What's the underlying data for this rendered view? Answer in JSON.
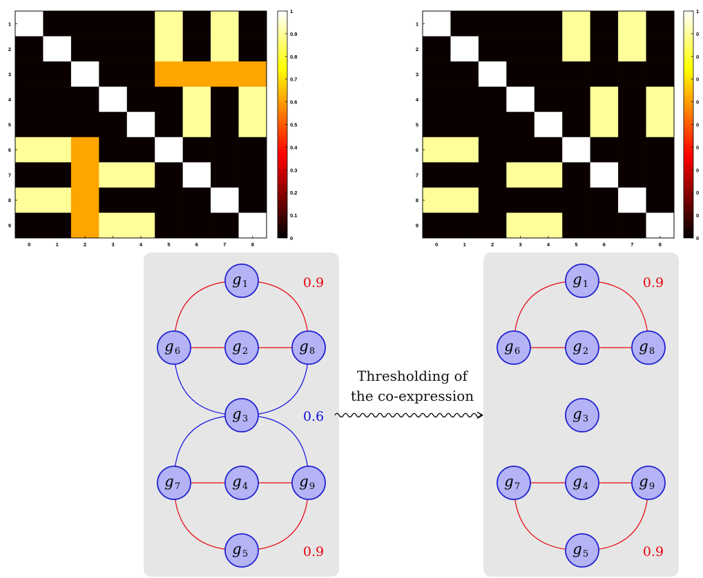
{
  "colors": {
    "red": "#e8000b",
    "blue": "#1010e0",
    "node_fill": "#b3b3f5",
    "node_stroke": "#2020d0",
    "panel": "#e6e6e6"
  },
  "heatmaps": [
    {
      "id": "original",
      "x_ticks": [
        "0",
        "1",
        "2",
        "3",
        "4",
        "5",
        "6",
        "7",
        "8"
      ],
      "y_ticks": [
        "1",
        "2",
        "3",
        "4",
        "5",
        "6",
        "7",
        "8",
        "9"
      ],
      "colorbar_ticks": [
        "0",
        "0.1",
        "0.2",
        "0.3",
        "0.4",
        "0.5",
        "0.6",
        "0.7",
        "0.8",
        "0.9",
        "1"
      ],
      "matrix": [
        [
          1,
          0,
          0,
          0,
          0,
          0.9,
          0,
          0.9,
          0
        ],
        [
          0,
          1,
          0,
          0,
          0,
          0.9,
          0,
          0.9,
          0
        ],
        [
          0,
          0,
          1,
          0,
          0,
          0.6,
          0.6,
          0.6,
          0.6
        ],
        [
          0,
          0,
          0,
          1,
          0,
          0,
          0.9,
          0,
          0.9
        ],
        [
          0,
          0,
          0,
          0,
          1,
          0,
          0.9,
          0,
          0.9
        ],
        [
          0.9,
          0.9,
          0.6,
          0,
          0,
          1,
          0,
          0,
          0
        ],
        [
          0,
          0,
          0.6,
          0.9,
          0.9,
          0,
          1,
          0,
          0
        ],
        [
          0.9,
          0.9,
          0.6,
          0,
          0,
          0,
          0,
          1,
          0
        ],
        [
          0,
          0,
          0.6,
          0.9,
          0.9,
          0,
          0,
          0,
          1
        ]
      ]
    },
    {
      "id": "thresholded",
      "x_ticks": [
        "0",
        "1",
        "2",
        "3",
        "4",
        "5",
        "6",
        "7",
        "8"
      ],
      "y_ticks": [
        "1",
        "2",
        "3",
        "4",
        "5",
        "6",
        "7",
        "8",
        "9"
      ],
      "colorbar_ticks": [
        "0",
        "0",
        "0",
        "0",
        "0",
        "0",
        "0",
        "0",
        "0",
        "0",
        "1"
      ],
      "matrix": [
        [
          1,
          0,
          0,
          0,
          0,
          0.9,
          0,
          0.9,
          0
        ],
        [
          0,
          1,
          0,
          0,
          0,
          0.9,
          0,
          0.9,
          0
        ],
        [
          0,
          0,
          1,
          0,
          0,
          0,
          0,
          0,
          0
        ],
        [
          0,
          0,
          0,
          1,
          0,
          0,
          0.9,
          0,
          0.9
        ],
        [
          0,
          0,
          0,
          0,
          1,
          0,
          0.9,
          0,
          0.9
        ],
        [
          0.9,
          0.9,
          0,
          0,
          0,
          1,
          0,
          0,
          0
        ],
        [
          0,
          0,
          0,
          0.9,
          0.9,
          0,
          1,
          0,
          0
        ],
        [
          0.9,
          0.9,
          0,
          0,
          0,
          0,
          0,
          1,
          0
        ],
        [
          0,
          0,
          0,
          0.9,
          0.9,
          0,
          0,
          0,
          1
        ]
      ]
    }
  ],
  "graphs": [
    {
      "id": "left-graph",
      "nodes": [
        {
          "id": "g1",
          "letter": "g",
          "sub": "1"
        },
        {
          "id": "g2",
          "letter": "g",
          "sub": "2"
        },
        {
          "id": "g3",
          "letter": "g",
          "sub": "3"
        },
        {
          "id": "g4",
          "letter": "g",
          "sub": "4"
        },
        {
          "id": "g5",
          "letter": "g",
          "sub": "5"
        },
        {
          "id": "g6",
          "letter": "g",
          "sub": "6"
        },
        {
          "id": "g7",
          "letter": "g",
          "sub": "7"
        },
        {
          "id": "g8",
          "letter": "g",
          "sub": "8"
        },
        {
          "id": "g9",
          "letter": "g",
          "sub": "9"
        }
      ],
      "edges": [
        {
          "from": "g1",
          "to": "g6",
          "weight": 0.9,
          "color": "red"
        },
        {
          "from": "g1",
          "to": "g8",
          "weight": 0.9,
          "color": "red"
        },
        {
          "from": "g6",
          "to": "g2",
          "weight": 0.9,
          "color": "red"
        },
        {
          "from": "g2",
          "to": "g8",
          "weight": 0.9,
          "color": "red"
        },
        {
          "from": "g6",
          "to": "g3",
          "weight": 0.6,
          "color": "blue"
        },
        {
          "from": "g8",
          "to": "g3",
          "weight": 0.6,
          "color": "blue"
        },
        {
          "from": "g3",
          "to": "g7",
          "weight": 0.6,
          "color": "blue"
        },
        {
          "from": "g3",
          "to": "g9",
          "weight": 0.6,
          "color": "blue"
        },
        {
          "from": "g7",
          "to": "g4",
          "weight": 0.9,
          "color": "red"
        },
        {
          "from": "g4",
          "to": "g9",
          "weight": 0.9,
          "color": "red"
        },
        {
          "from": "g7",
          "to": "g5",
          "weight": 0.9,
          "color": "red"
        },
        {
          "from": "g9",
          "to": "g5",
          "weight": 0.9,
          "color": "red"
        }
      ],
      "labels": [
        {
          "text": "0.9",
          "color": "red"
        },
        {
          "text": "0.6",
          "color": "blue"
        },
        {
          "text": "0.9",
          "color": "red"
        }
      ]
    },
    {
      "id": "right-graph",
      "nodes": [
        {
          "id": "g1",
          "letter": "g",
          "sub": "1"
        },
        {
          "id": "g2",
          "letter": "g",
          "sub": "2"
        },
        {
          "id": "g3",
          "letter": "g",
          "sub": "3"
        },
        {
          "id": "g4",
          "letter": "g",
          "sub": "4"
        },
        {
          "id": "g5",
          "letter": "g",
          "sub": "5"
        },
        {
          "id": "g6",
          "letter": "g",
          "sub": "6"
        },
        {
          "id": "g7",
          "letter": "g",
          "sub": "7"
        },
        {
          "id": "g8",
          "letter": "g",
          "sub": "8"
        },
        {
          "id": "g9",
          "letter": "g",
          "sub": "9"
        }
      ],
      "edges": [
        {
          "from": "g1",
          "to": "g6",
          "weight": 0.9,
          "color": "red"
        },
        {
          "from": "g1",
          "to": "g8",
          "weight": 0.9,
          "color": "red"
        },
        {
          "from": "g6",
          "to": "g2",
          "weight": 0.9,
          "color": "red"
        },
        {
          "from": "g2",
          "to": "g8",
          "weight": 0.9,
          "color": "red"
        },
        {
          "from": "g7",
          "to": "g4",
          "weight": 0.9,
          "color": "red"
        },
        {
          "from": "g4",
          "to": "g9",
          "weight": 0.9,
          "color": "red"
        },
        {
          "from": "g7",
          "to": "g5",
          "weight": 0.9,
          "color": "red"
        },
        {
          "from": "g9",
          "to": "g5",
          "weight": 0.9,
          "color": "red"
        }
      ],
      "labels": [
        {
          "text": "0.9",
          "color": "red"
        },
        {
          "text": "0.9",
          "color": "red"
        }
      ]
    }
  ],
  "transition": {
    "line1": "Thresholding of",
    "line2": "the co-expression"
  }
}
